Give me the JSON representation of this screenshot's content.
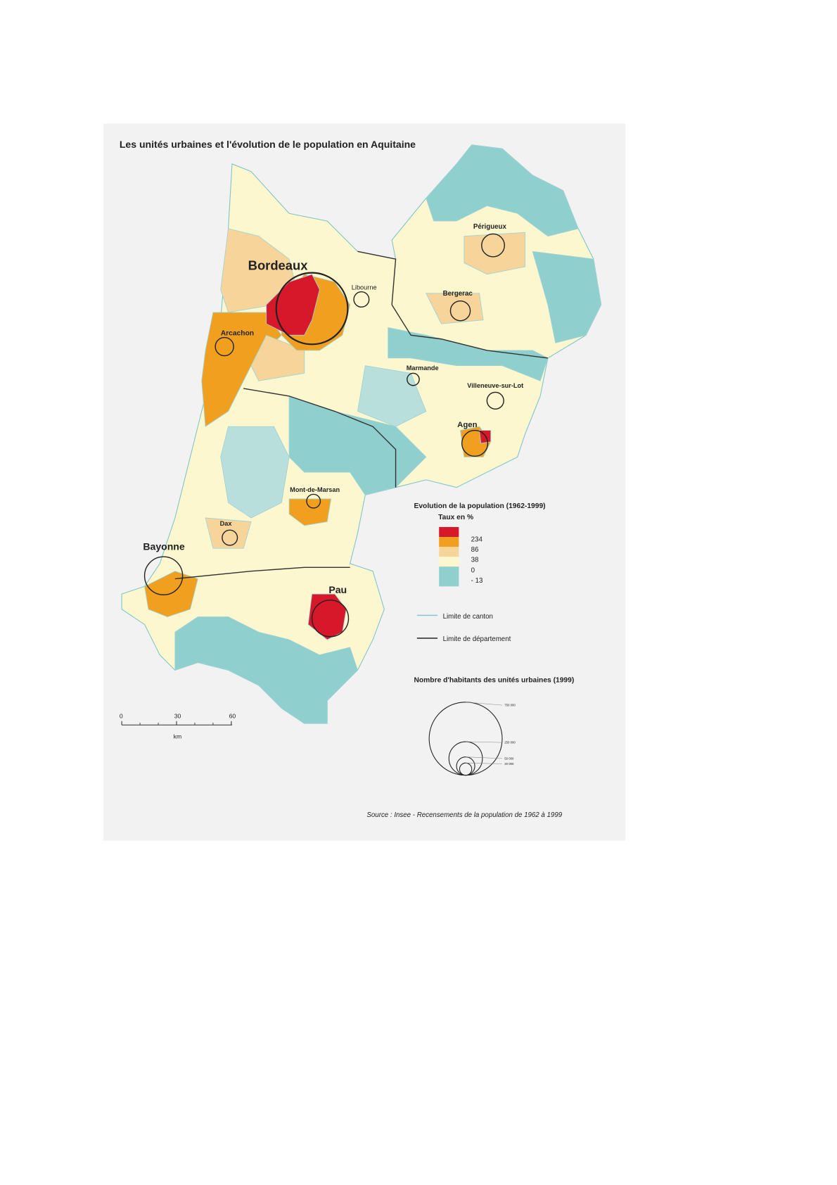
{
  "header": {
    "title": "Les unités urbaines et l'évolution de le population en Aquitaine"
  },
  "map": {
    "cities": [
      "Bordeaux",
      "Libourne",
      "Arcachon",
      "Périgueux",
      "Bergerac",
      "Marmande",
      "Villeneuve-sur-Lot",
      "Agen",
      "Mont-de-Marsan",
      "Dax",
      "Bayonne",
      "Pau"
    ]
  },
  "legend": {
    "title": "Evolution de la population (1962-1999)",
    "subtitle": "Taux en %",
    "classes": [
      "234",
      "86",
      "38",
      "0",
      "- 13"
    ],
    "lines": [
      "Limite de canton",
      "Limite de département"
    ]
  },
  "circle_legend": {
    "title": "Nombre d'habitants des unités urbaines (1999)",
    "labels": [
      "750 000",
      "250 000",
      "50 000",
      "20 000"
    ]
  },
  "scale": {
    "ticks": [
      "0",
      "30",
      "60"
    ],
    "unit": "km"
  },
  "source": "Source : Insee - Recensements de la population de 1962 à 1999"
}
